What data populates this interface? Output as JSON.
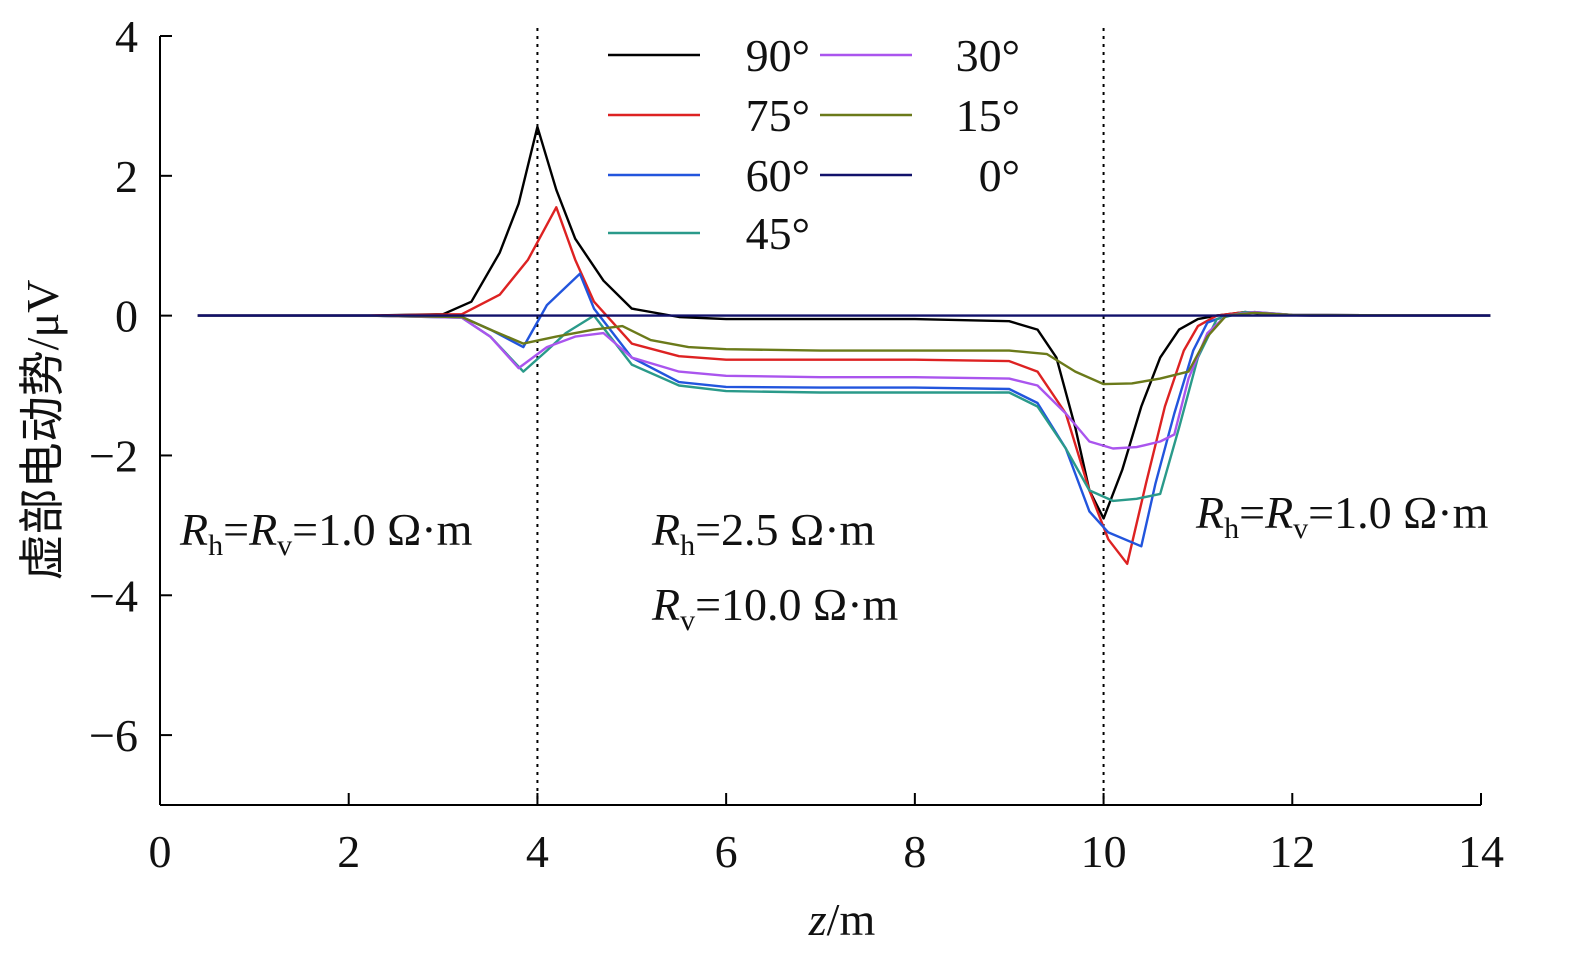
{
  "chart_data": {
    "type": "line",
    "xlabel": {
      "italic": "z",
      "rest": "/m"
    },
    "ylabel": "虚部电动势/μV",
    "xlim": [
      0,
      14
    ],
    "ylim": [
      -7,
      4
    ],
    "xticks": [
      0,
      2,
      4,
      6,
      8,
      10,
      12,
      14
    ],
    "yticks": [
      4,
      2,
      0,
      -2,
      -4,
      -6
    ],
    "ytick_labels": [
      "4",
      "2",
      "0",
      "−2",
      "−4",
      "−6"
    ],
    "grid": false,
    "legend_position": "top-center",
    "boundaries": [
      4,
      10
    ],
    "annotations": [
      {
        "text": [
          "R",
          "h",
          "=",
          "R",
          "v",
          "=1.0 Ω·m"
        ]
      },
      {
        "text": [
          "R",
          "h",
          "=2.5 Ω·m"
        ]
      },
      {
        "text": [
          "R",
          "v",
          "=10.0 Ω·m"
        ]
      },
      {
        "text": [
          "R",
          "h",
          "=",
          "R",
          "v",
          "=1.0 Ω·m"
        ]
      }
    ],
    "series": [
      {
        "name": "90°",
        "color": "#000000",
        "x": [
          0.4,
          2.2,
          3.0,
          3.3,
          3.6,
          3.8,
          4.0,
          4.2,
          4.4,
          4.7,
          5.0,
          5.5,
          6.0,
          7.0,
          8.0,
          9.0,
          9.3,
          9.5,
          9.7,
          9.85,
          10.0,
          10.2,
          10.4,
          10.6,
          10.8,
          11.0,
          11.2,
          11.5,
          11.8,
          12.2,
          14.1
        ],
        "y": [
          0,
          0,
          0.02,
          0.2,
          0.9,
          1.6,
          2.7,
          1.8,
          1.1,
          0.5,
          0.1,
          -0.02,
          -0.05,
          -0.05,
          -0.05,
          -0.08,
          -0.2,
          -0.6,
          -1.6,
          -2.5,
          -2.9,
          -2.2,
          -1.3,
          -0.6,
          -0.2,
          -0.05,
          0.0,
          0.05,
          0.01,
          0,
          0
        ]
      },
      {
        "name": "75°",
        "color": "#dd2222",
        "x": [
          0.4,
          2.2,
          3.2,
          3.6,
          3.9,
          4.2,
          4.4,
          4.6,
          5.0,
          5.5,
          6.0,
          7.0,
          8.0,
          9.0,
          9.3,
          9.6,
          9.85,
          10.05,
          10.25,
          10.45,
          10.65,
          10.85,
          11.0,
          11.2,
          11.5,
          12.0,
          14.1
        ],
        "y": [
          0,
          0,
          0.02,
          0.3,
          0.8,
          1.55,
          0.8,
          0.2,
          -0.4,
          -0.58,
          -0.63,
          -0.63,
          -0.63,
          -0.65,
          -0.8,
          -1.4,
          -2.5,
          -3.2,
          -3.55,
          -2.4,
          -1.3,
          -0.5,
          -0.15,
          0.0,
          0.05,
          0.01,
          0
        ]
      },
      {
        "name": "60°",
        "color": "#2255dd",
        "x": [
          0.4,
          2.2,
          3.2,
          3.5,
          3.85,
          4.1,
          4.45,
          4.6,
          5.0,
          5.5,
          6.0,
          7.0,
          8.0,
          9.0,
          9.3,
          9.6,
          9.85,
          10.05,
          10.4,
          10.55,
          10.75,
          10.95,
          11.1,
          11.3,
          11.6,
          12.0,
          14.1
        ],
        "y": [
          0,
          0,
          -0.02,
          -0.2,
          -0.45,
          0.15,
          0.6,
          0.1,
          -0.6,
          -0.95,
          -1.02,
          -1.03,
          -1.03,
          -1.05,
          -1.25,
          -1.9,
          -2.8,
          -3.1,
          -3.3,
          -2.4,
          -1.4,
          -0.5,
          -0.1,
          0.0,
          0.05,
          0.01,
          0
        ]
      },
      {
        "name": "45°",
        "color": "#2a9a8a",
        "x": [
          0.4,
          2.2,
          3.2,
          3.5,
          3.85,
          4.1,
          4.3,
          4.6,
          5.0,
          5.5,
          6.0,
          7.0,
          8.0,
          9.0,
          9.3,
          9.6,
          9.85,
          10.1,
          10.35,
          10.6,
          10.8,
          11.0,
          11.2,
          11.5,
          12.0,
          14.1
        ],
        "y": [
          0,
          0,
          -0.03,
          -0.3,
          -0.8,
          -0.5,
          -0.25,
          0.0,
          -0.7,
          -1.0,
          -1.08,
          -1.1,
          -1.1,
          -1.1,
          -1.3,
          -1.9,
          -2.5,
          -2.65,
          -2.62,
          -2.55,
          -1.6,
          -0.6,
          -0.05,
          0.05,
          0.01,
          0
        ]
      },
      {
        "name": "30°",
        "color": "#aa55ee",
        "x": [
          0.4,
          2.2,
          3.2,
          3.5,
          3.8,
          4.1,
          4.4,
          4.7,
          5.0,
          5.5,
          6.0,
          7.0,
          8.0,
          9.0,
          9.3,
          9.6,
          9.85,
          10.1,
          10.35,
          10.6,
          10.75,
          10.9,
          11.1,
          11.3,
          11.6,
          12.0,
          14.1
        ],
        "y": [
          0,
          0,
          -0.03,
          -0.3,
          -0.75,
          -0.45,
          -0.3,
          -0.25,
          -0.6,
          -0.8,
          -0.86,
          -0.88,
          -0.88,
          -0.9,
          -1.0,
          -1.4,
          -1.8,
          -1.9,
          -1.88,
          -1.8,
          -1.7,
          -0.9,
          -0.25,
          0.0,
          0.05,
          0.01,
          0
        ]
      },
      {
        "name": "15°",
        "color": "#6b7a1a",
        "x": [
          0.4,
          2.2,
          3.2,
          3.5,
          3.85,
          4.2,
          4.6,
          4.9,
          5.2,
          5.6,
          6.0,
          7.0,
          8.0,
          9.0,
          9.4,
          9.7,
          10.0,
          10.3,
          10.6,
          10.9,
          11.1,
          11.3,
          11.6,
          12.0,
          14.1
        ],
        "y": [
          0,
          0,
          -0.02,
          -0.2,
          -0.4,
          -0.3,
          -0.2,
          -0.15,
          -0.35,
          -0.45,
          -0.48,
          -0.5,
          -0.5,
          -0.5,
          -0.55,
          -0.8,
          -0.98,
          -0.97,
          -0.9,
          -0.8,
          -0.3,
          0.0,
          0.04,
          0.01,
          0
        ]
      },
      {
        "name": "0°",
        "color": "#11116b",
        "x": [
          0.4,
          14.1
        ],
        "y": [
          0,
          0
        ]
      }
    ]
  }
}
